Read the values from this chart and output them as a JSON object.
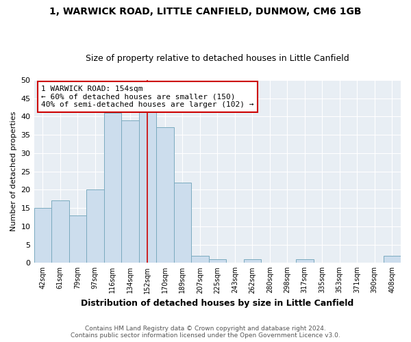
{
  "title": "1, WARWICK ROAD, LITTLE CANFIELD, DUNMOW, CM6 1GB",
  "subtitle": "Size of property relative to detached houses in Little Canfield",
  "xlabel": "Distribution of detached houses by size in Little Canfield",
  "ylabel": "Number of detached properties",
  "bin_labels": [
    "42sqm",
    "61sqm",
    "79sqm",
    "97sqm",
    "116sqm",
    "134sqm",
    "152sqm",
    "170sqm",
    "189sqm",
    "207sqm",
    "225sqm",
    "243sqm",
    "262sqm",
    "280sqm",
    "298sqm",
    "317sqm",
    "335sqm",
    "353sqm",
    "371sqm",
    "390sqm",
    "408sqm"
  ],
  "bar_heights": [
    15,
    17,
    13,
    20,
    41,
    39,
    42,
    37,
    22,
    2,
    1,
    0,
    1,
    0,
    0,
    1,
    0,
    0,
    0,
    0,
    2
  ],
  "bar_color": "#ccdded",
  "bar_edge_color": "#7aaabf",
  "vline_x_index": 6,
  "vline_color": "#cc0000",
  "annotation_text": "1 WARWICK ROAD: 154sqm\n← 60% of detached houses are smaller (150)\n40% of semi-detached houses are larger (102) →",
  "annotation_box_color": "#ffffff",
  "annotation_box_edge_color": "#cc0000",
  "ylim": [
    0,
    50
  ],
  "yticks": [
    0,
    5,
    10,
    15,
    20,
    25,
    30,
    35,
    40,
    45,
    50
  ],
  "footer_text": "Contains HM Land Registry data © Crown copyright and database right 2024.\nContains public sector information licensed under the Open Government Licence v3.0.",
  "bg_color": "#ffffff",
  "plot_bg_color": "#e8eef4",
  "grid_color": "#ffffff",
  "title_fontsize": 10,
  "subtitle_fontsize": 9
}
